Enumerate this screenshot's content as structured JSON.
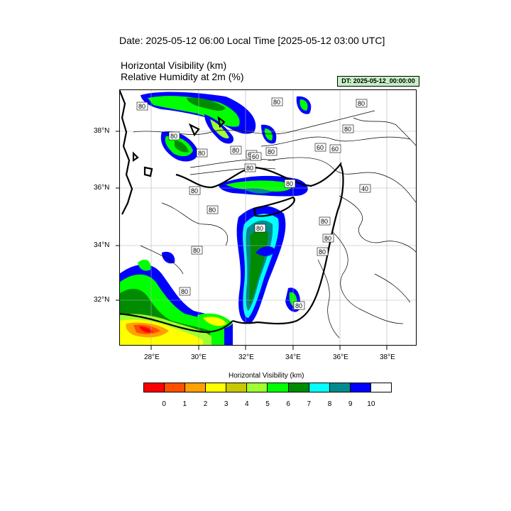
{
  "header": {
    "date_line": "Date: 2025-05-12  06:00 Local Time [2025-05-12  03:00 UTC]",
    "field_line_1": "Horizontal Visibility   (km)",
    "field_line_2": "Relative Humidity at 2m   (%)",
    "dt_label": "DT: 2025-05-12_00:00:00"
  },
  "map": {
    "lon_ticks": [
      "28°E",
      "30°E",
      "32°E",
      "34°E",
      "36°E",
      "38°E"
    ],
    "lat_ticks": [
      "38°N",
      "36°N",
      "34°N",
      "32°N"
    ],
    "contour_labels": [
      "80",
      "80",
      "80",
      "80",
      "60",
      "80",
      "80",
      "80",
      "80",
      "60",
      "60",
      "80",
      "80",
      "80",
      "40",
      "80",
      "80",
      "80",
      "80",
      "80",
      "80",
      "80",
      "80",
      "60"
    ],
    "colors": {
      "land_outline": "#000000",
      "contour": "#000000",
      "grid": "#b0b0b0"
    }
  },
  "colorbar": {
    "title": "Horizontal Visibility  (km)",
    "labels": [
      "0",
      "1",
      "2",
      "3",
      "4",
      "5",
      "6",
      "7",
      "8",
      "9",
      "10"
    ],
    "colors": [
      "#ff0000",
      "#ff5000",
      "#ffa000",
      "#ffff00",
      "#c8c800",
      "#a0ff30",
      "#00ff00",
      "#008c00",
      "#00ffff",
      "#008c8c",
      "#0000ff",
      "#ffffff"
    ]
  }
}
